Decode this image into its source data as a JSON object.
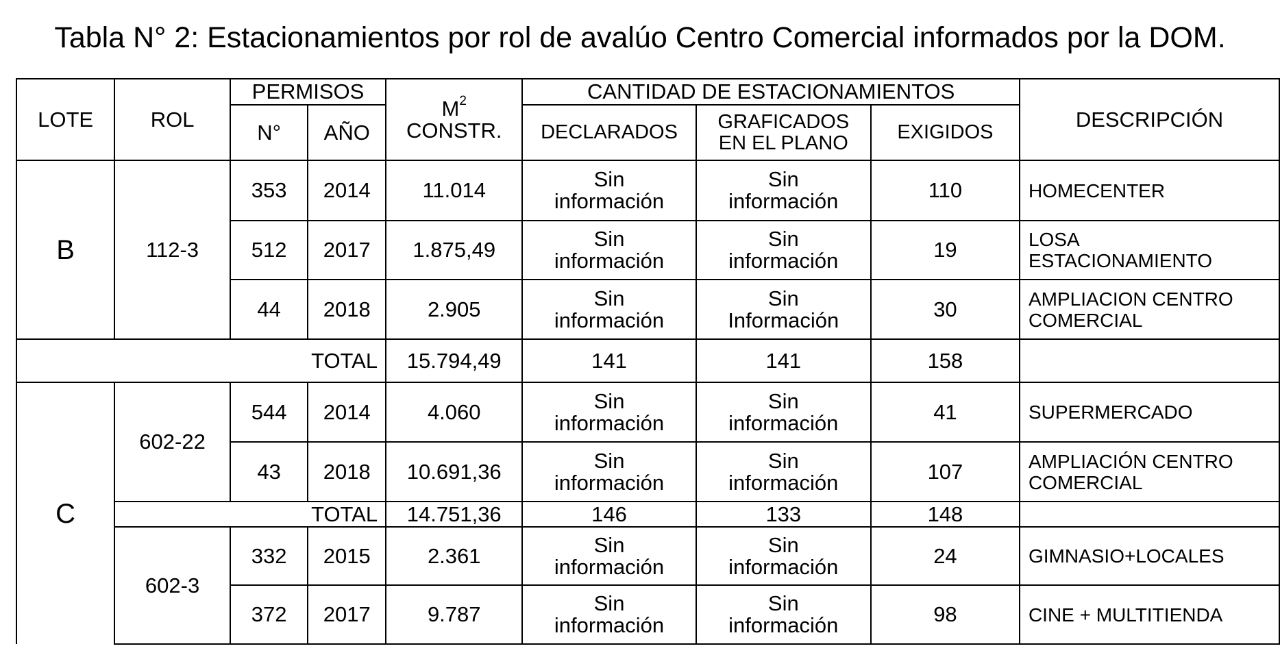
{
  "title": "Tabla N° 2: Estacionamientos por rol de avalúo Centro Comercial informados por la DOM.",
  "headers": {
    "lote": "LOTE",
    "rol": "ROL",
    "permisos": "PERMISOS",
    "n": "N°",
    "anio": "AÑO",
    "m2_base": "M",
    "m2_sup": "2",
    "constr": "CONSTR.",
    "cantidad": "CANTIDAD DE ESTACIONAMIENTOS",
    "declarados": "DECLARADOS",
    "graficados_1": "GRAFICADOS",
    "graficados_2": "EN EL PLANO",
    "exigidos": "EXIGIDOS",
    "descripcion": "DESCRIPCIÓN"
  },
  "lote_b": {
    "lote": "B",
    "rol": "112-3",
    "rows": [
      {
        "n": "353",
        "anio": "2014",
        "m2": "11.014",
        "decl_1": "Sin",
        "decl_2": "información",
        "graf_1": "Sin",
        "graf_2": "información",
        "exig": "110",
        "desc_1": "HOMECENTER",
        "desc_2": ""
      },
      {
        "n": "512",
        "anio": "2017",
        "m2": "1.875,49",
        "decl_1": "Sin",
        "decl_2": "información",
        "graf_1": "Sin",
        "graf_2": "información",
        "exig": "19",
        "desc_1": "LOSA",
        "desc_2": "ESTACIONAMIENTO"
      },
      {
        "n": "44",
        "anio": "2018",
        "m2": "2.905",
        "decl_1": "Sin",
        "decl_2": "información",
        "graf_1": "Sin",
        "graf_2": "Información",
        "exig": "30",
        "desc_1": "AMPLIACION CENTRO",
        "desc_2": "COMERCIAL"
      }
    ],
    "total": {
      "label": "TOTAL",
      "m2": "15.794,49",
      "decl": "141",
      "graf": "141",
      "exig": "158"
    }
  },
  "lote_c": {
    "lote": "C",
    "rol_a": "602-22",
    "rows_a": [
      {
        "n": "544",
        "anio": "2014",
        "m2": "4.060",
        "decl_1": "Sin",
        "decl_2": "información",
        "graf_1": "Sin",
        "graf_2": "información",
        "exig": "41",
        "desc_1": "SUPERMERCADO",
        "desc_2": ""
      },
      {
        "n": "43",
        "anio": "2018",
        "m2": "10.691,36",
        "decl_1": "Sin",
        "decl_2": "información",
        "graf_1": "Sin",
        "graf_2": "información",
        "exig": "107",
        "desc_1": "AMPLIACIÓN CENTRO",
        "desc_2": "COMERCIAL"
      }
    ],
    "total_a": {
      "label": "TOTAL",
      "m2": "14.751,36",
      "decl": "146",
      "graf": "133",
      "exig": "148"
    },
    "rol_b": "602-3",
    "rows_b": [
      {
        "n": "332",
        "anio": "2015",
        "m2": "2.361",
        "decl_1": "Sin",
        "decl_2": "información",
        "graf_1": "Sin",
        "graf_2": "información",
        "exig": "24",
        "desc_1": "GIMNASIO+LOCALES",
        "desc_2": ""
      },
      {
        "n": "372",
        "anio": "2017",
        "m2": "9.787",
        "decl_1": "Sin",
        "decl_2": "información",
        "graf_1": "Sin",
        "graf_2": "información",
        "exig": "98",
        "desc_1": "CINE + MULTITIENDA",
        "desc_2": ""
      }
    ]
  }
}
